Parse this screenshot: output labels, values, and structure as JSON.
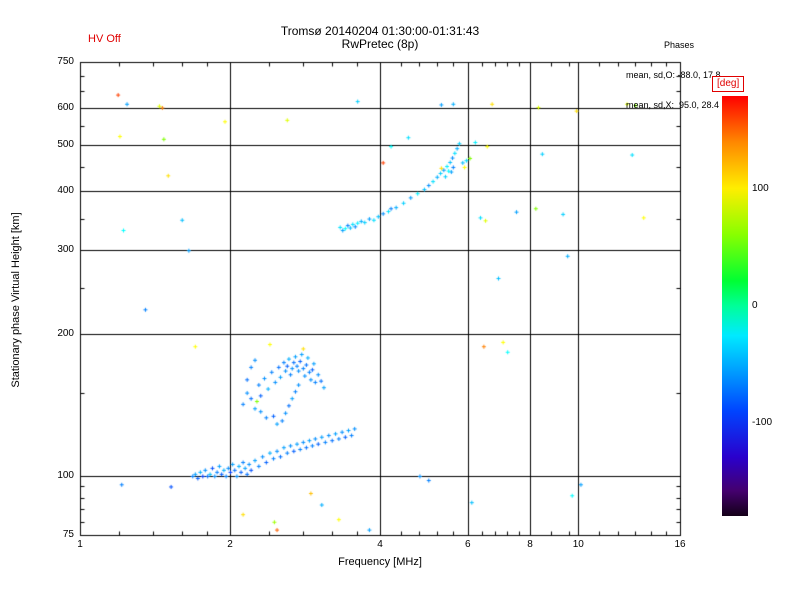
{
  "header": {
    "hv_off": "HV Off",
    "title_line1": "Tromsø 20140204 01:30:00-01:31:43",
    "title_line2": "RwPretec (8p)",
    "phases_label": "Phases",
    "phases_o": "mean, sd,O: -88.0, 17.8",
    "phases_x": "mean, sd,X:  95.0, 28.4"
  },
  "chart_data": {
    "type": "scatter",
    "title": "Tromsø 20140204 01:30:00-01:31:43  RwPretec (8p)",
    "xlabel": "Frequency [MHz]",
    "ylabel": "Stationary phase Virtual Height [km]",
    "x_scale": "log",
    "y_scale": "log",
    "xlim": [
      1,
      16
    ],
    "ylim": [
      75,
      750
    ],
    "x_ticks": [
      1,
      2,
      4,
      6,
      8,
      10,
      16
    ],
    "y_ticks": [
      75,
      100,
      200,
      300,
      400,
      500,
      600,
      750
    ],
    "grid_x": [
      2,
      4,
      6,
      8,
      10
    ],
    "grid_y": [
      100,
      200,
      300,
      400,
      500,
      600
    ],
    "x_minor_ticks": [
      1.2,
      1.4,
      1.6,
      1.8,
      2.4,
      2.8,
      3.2,
      3.6,
      4.4,
      4.8,
      5.2,
      5.6,
      6.4,
      6.8,
      7.2,
      7.6,
      8.8,
      9.6,
      11,
      12,
      13,
      14,
      15
    ],
    "y_minor_ticks": [
      80,
      85,
      90,
      95,
      150,
      250,
      350,
      450,
      550,
      650,
      700
    ],
    "grid": true,
    "legend_position": "none",
    "colorbar": {
      "label": "[deg]",
      "min": -180,
      "max": 180,
      "ticks": [
        100,
        0,
        -100
      ]
    },
    "points_format": [
      "frequency_MHz",
      "virtual_height_km",
      "phase_deg"
    ],
    "points": [
      [
        1.68,
        100,
        -100
      ],
      [
        1.7,
        101,
        -90
      ],
      [
        1.72,
        99,
        -110
      ],
      [
        1.74,
        102,
        -85
      ],
      [
        1.76,
        100,
        -120
      ],
      [
        1.78,
        103,
        -95
      ],
      [
        1.8,
        100,
        -105
      ],
      [
        1.82,
        101,
        -80
      ],
      [
        1.84,
        104,
        -115
      ],
      [
        1.86,
        100,
        -95
      ],
      [
        1.88,
        102,
        -100
      ],
      [
        1.9,
        105,
        -90
      ],
      [
        1.92,
        101,
        -110
      ],
      [
        1.94,
        103,
        -85
      ],
      [
        1.96,
        100,
        -100
      ],
      [
        1.98,
        104,
        -95
      ],
      [
        2.0,
        102,
        -120
      ],
      [
        2.02,
        106,
        -90
      ],
      [
        2.04,
        103,
        -105
      ],
      [
        2.06,
        100,
        -95
      ],
      [
        2.08,
        105,
        -85
      ],
      [
        2.1,
        102,
        -110
      ],
      [
        2.12,
        107,
        -100
      ],
      [
        2.14,
        104,
        -90
      ],
      [
        2.16,
        101,
        -105
      ],
      [
        2.18,
        106,
        -95
      ],
      [
        2.2,
        103,
        -115
      ],
      [
        2.24,
        108,
        -90
      ],
      [
        2.28,
        105,
        -100
      ],
      [
        2.32,
        110,
        -95
      ],
      [
        2.36,
        107,
        -110
      ],
      [
        2.4,
        112,
        -85
      ],
      [
        2.44,
        109,
        -100
      ],
      [
        2.48,
        113,
        -95
      ],
      [
        2.52,
        110,
        -105
      ],
      [
        2.56,
        115,
        -90
      ],
      [
        2.6,
        112,
        -100
      ],
      [
        2.64,
        116,
        -95
      ],
      [
        2.68,
        113,
        -110
      ],
      [
        2.72,
        117,
        -90
      ],
      [
        2.76,
        114,
        -100
      ],
      [
        2.8,
        118,
        -95
      ],
      [
        2.84,
        115,
        -105
      ],
      [
        2.88,
        119,
        -90
      ],
      [
        2.92,
        116,
        -100
      ],
      [
        2.96,
        120,
        -95
      ],
      [
        3.0,
        117,
        -110
      ],
      [
        3.05,
        121,
        -90
      ],
      [
        3.1,
        118,
        -100
      ],
      [
        3.15,
        122,
        -95
      ],
      [
        3.2,
        119,
        -105
      ],
      [
        3.25,
        123,
        -90
      ],
      [
        3.3,
        120,
        -100
      ],
      [
        3.35,
        124,
        -95
      ],
      [
        3.4,
        121,
        -110
      ],
      [
        3.45,
        125,
        -90
      ],
      [
        3.5,
        122,
        -100
      ],
      [
        3.55,
        126,
        -95
      ],
      [
        2.12,
        142,
        -100
      ],
      [
        2.16,
        150,
        -95
      ],
      [
        2.2,
        146,
        -105
      ],
      [
        2.24,
        139,
        -90
      ],
      [
        2.28,
        156,
        -100
      ],
      [
        2.3,
        148,
        -110
      ],
      [
        2.34,
        161,
        -95
      ],
      [
        2.38,
        153,
        -85
      ],
      [
        2.42,
        166,
        -100
      ],
      [
        2.46,
        158,
        -95
      ],
      [
        2.5,
        170,
        -105
      ],
      [
        2.52,
        162,
        -90
      ],
      [
        2.56,
        174,
        -100
      ],
      [
        2.58,
        167,
        -95
      ],
      [
        2.6,
        171,
        -110
      ],
      [
        2.62,
        177,
        -85
      ],
      [
        2.64,
        164,
        -100
      ],
      [
        2.66,
        169,
        -95
      ],
      [
        2.68,
        174,
        -105
      ],
      [
        2.7,
        179,
        -90
      ],
      [
        2.72,
        171,
        -100
      ],
      [
        2.74,
        167,
        -95
      ],
      [
        2.76,
        175,
        -110
      ],
      [
        2.78,
        181,
        -90
      ],
      [
        2.8,
        169,
        -100
      ],
      [
        2.82,
        163,
        -95
      ],
      [
        2.84,
        172,
        -105
      ],
      [
        2.86,
        178,
        -85
      ],
      [
        2.88,
        166,
        -100
      ],
      [
        2.9,
        160,
        -95
      ],
      [
        2.92,
        168,
        -110
      ],
      [
        2.94,
        173,
        -90
      ],
      [
        2.96,
        158,
        -100
      ],
      [
        3.0,
        164,
        -95
      ],
      [
        3.04,
        159,
        -105
      ],
      [
        3.08,
        154,
        -90
      ],
      [
        2.54,
        131,
        -100
      ],
      [
        2.58,
        136,
        -95
      ],
      [
        2.62,
        141,
        -105
      ],
      [
        2.66,
        146,
        -90
      ],
      [
        2.7,
        151,
        -100
      ],
      [
        2.74,
        156,
        -95
      ],
      [
        2.44,
        134,
        -110
      ],
      [
        2.48,
        129,
        -90
      ],
      [
        2.36,
        133,
        -100
      ],
      [
        2.3,
        137,
        -95
      ],
      [
        2.26,
        144,
        60
      ],
      [
        2.8,
        186,
        110
      ],
      [
        2.4,
        190,
        100
      ],
      [
        2.2,
        170,
        -100
      ],
      [
        2.24,
        176,
        -95
      ],
      [
        2.16,
        160,
        -105
      ],
      [
        3.32,
        336,
        -70
      ],
      [
        3.36,
        331,
        -90
      ],
      [
        3.4,
        334,
        -60
      ],
      [
        3.44,
        339,
        -100
      ],
      [
        3.48,
        335,
        -80
      ],
      [
        3.52,
        341,
        -70
      ],
      [
        3.56,
        337,
        -95
      ],
      [
        3.6,
        343,
        -65
      ],
      [
        3.66,
        346,
        -85
      ],
      [
        3.72,
        344,
        -75
      ],
      [
        3.8,
        350,
        -90
      ],
      [
        3.88,
        348,
        -70
      ],
      [
        3.96,
        354,
        -80
      ],
      [
        4.05,
        359,
        -95
      ],
      [
        4.15,
        363,
        -70
      ],
      [
        4.3,
        370,
        -85
      ],
      [
        4.45,
        378,
        -75
      ],
      [
        4.6,
        388,
        -90
      ],
      [
        4.75,
        396,
        -65
      ],
      [
        4.9,
        404,
        -80
      ],
      [
        5.0,
        412,
        -95
      ],
      [
        5.1,
        420,
        -70
      ],
      [
        5.2,
        429,
        -85
      ],
      [
        5.28,
        437,
        -75
      ],
      [
        5.36,
        444,
        -90
      ],
      [
        5.44,
        452,
        -65
      ],
      [
        5.52,
        461,
        -80
      ],
      [
        5.58,
        471,
        -95
      ],
      [
        5.64,
        482,
        -70
      ],
      [
        5.7,
        493,
        -85
      ],
      [
        5.76,
        505,
        -75
      ],
      [
        5.6,
        450,
        -100
      ],
      [
        5.48,
        442,
        -60
      ],
      [
        5.3,
        448,
        110
      ],
      [
        5.55,
        440,
        -90
      ],
      [
        5.4,
        430,
        -75
      ],
      [
        4.2,
        368,
        -100
      ],
      [
        5.85,
        460,
        -80
      ],
      [
        5.9,
        450,
        100
      ],
      [
        5.95,
        465,
        -70
      ],
      [
        6.05,
        470,
        60
      ],
      [
        1.19,
        640,
        160
      ],
      [
        1.2,
        523,
        100
      ],
      [
        1.22,
        331,
        -60
      ],
      [
        1.21,
        96,
        -100
      ],
      [
        1.24,
        612,
        -90
      ],
      [
        1.44,
        606,
        90
      ],
      [
        1.47,
        516,
        60
      ],
      [
        1.5,
        432,
        110
      ],
      [
        1.52,
        95,
        -115
      ],
      [
        1.46,
        601,
        140
      ],
      [
        1.6,
        348,
        -80
      ],
      [
        1.7,
        188,
        100
      ],
      [
        1.95,
        562,
        100
      ],
      [
        2.6,
        566,
        90
      ],
      [
        2.12,
        83,
        110
      ],
      [
        2.45,
        80,
        70
      ],
      [
        2.48,
        77,
        150
      ],
      [
        3.05,
        87,
        -85
      ],
      [
        3.3,
        81,
        100
      ],
      [
        2.9,
        92,
        120
      ],
      [
        3.6,
        620,
        -75
      ],
      [
        3.8,
        77,
        -90
      ],
      [
        4.2,
        498,
        -60
      ],
      [
        4.05,
        460,
        160
      ],
      [
        4.55,
        520,
        -70
      ],
      [
        5.6,
        612,
        -85
      ],
      [
        5.3,
        610,
        -90
      ],
      [
        6.2,
        508,
        -65
      ],
      [
        6.35,
        352,
        -70
      ],
      [
        6.5,
        347,
        90
      ],
      [
        6.55,
        498,
        100
      ],
      [
        6.7,
        612,
        110
      ],
      [
        6.9,
        262,
        -80
      ],
      [
        7.05,
        192,
        100
      ],
      [
        7.2,
        183,
        -60
      ],
      [
        7.5,
        362,
        -90
      ],
      [
        8.2,
        368,
        60
      ],
      [
        8.3,
        602,
        90
      ],
      [
        8.45,
        480,
        -75
      ],
      [
        9.5,
        292,
        -85
      ],
      [
        9.7,
        91,
        -60
      ],
      [
        9.9,
        592,
        110
      ],
      [
        10.1,
        96,
        -90
      ],
      [
        12.5,
        612,
        90
      ],
      [
        12.8,
        478,
        -70
      ],
      [
        13.5,
        352,
        100
      ],
      [
        13.0,
        608,
        60
      ],
      [
        6.1,
        88,
        -80
      ],
      [
        4.8,
        100,
        -95
      ],
      [
        5.0,
        98,
        -100
      ],
      [
        1.35,
        225,
        -100
      ],
      [
        1.65,
        300,
        -90
      ],
      [
        6.45,
        188,
        140
      ],
      [
        9.3,
        358,
        -75
      ]
    ]
  }
}
